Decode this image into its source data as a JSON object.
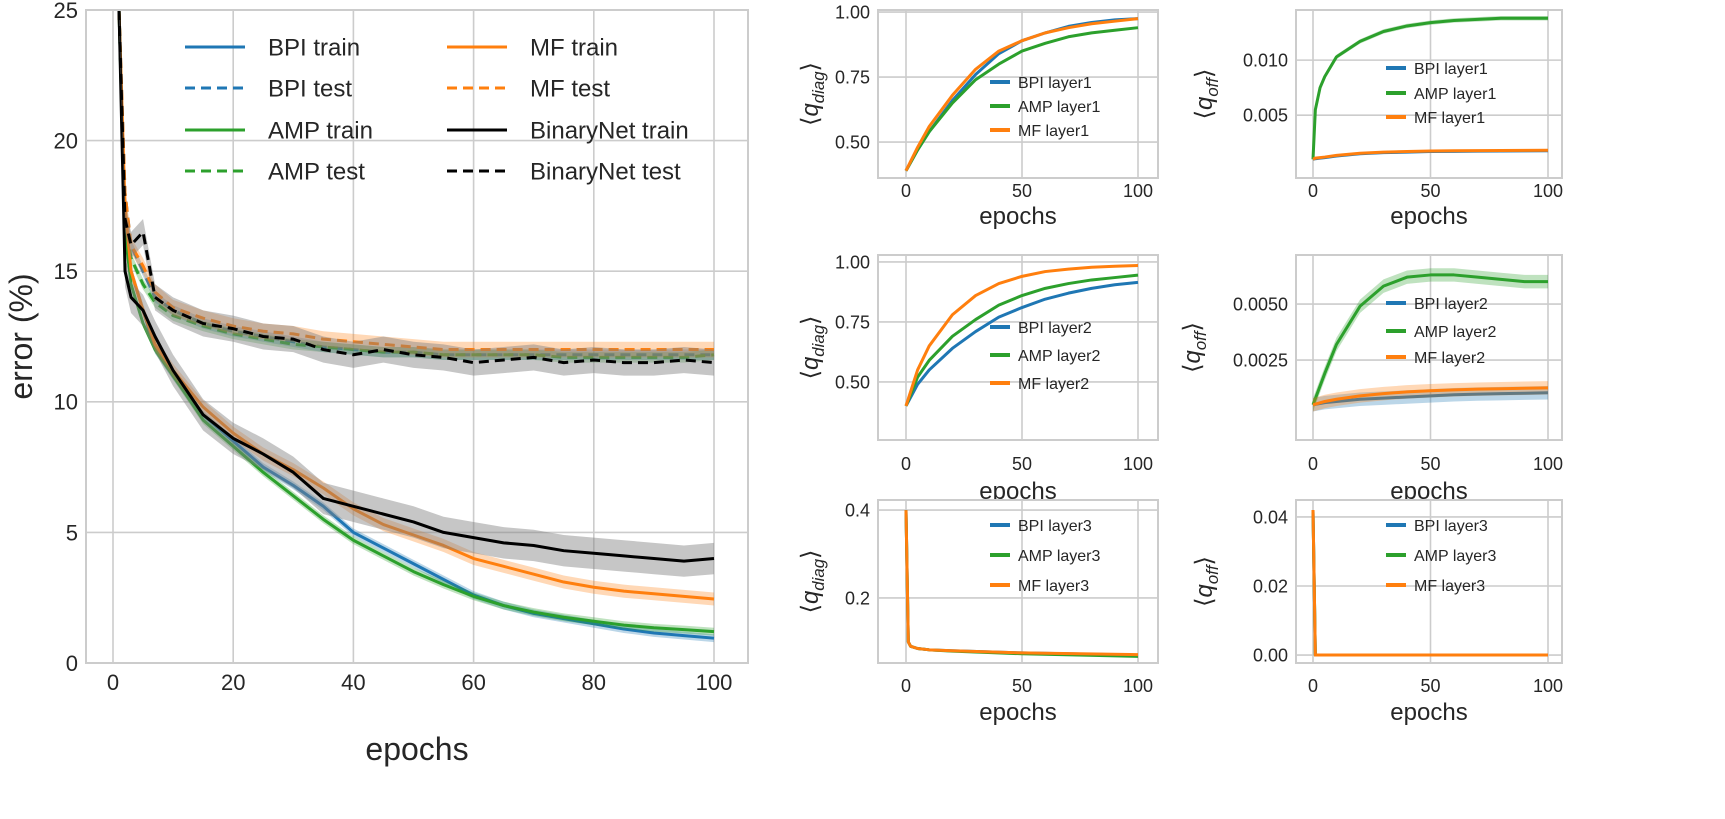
{
  "colors": {
    "BPI": "#1f77b4",
    "AMP": "#2ca02c",
    "MF": "#ff7f0e",
    "BinaryNet": "#000000",
    "grid": "#cccccc"
  },
  "chart_data": [
    {
      "type": "line",
      "xlabel": "epochs",
      "ylabel": "error (%)",
      "xlim": [
        -4,
        105
      ],
      "ylim": [
        0,
        25
      ],
      "xticks": [
        0,
        20,
        40,
        60,
        80,
        100
      ],
      "yticks": [
        0,
        5,
        10,
        15,
        20,
        25
      ],
      "grid": true,
      "legend": "top, two columns",
      "x": [
        1,
        2,
        3,
        5,
        7,
        10,
        15,
        20,
        25,
        30,
        35,
        40,
        45,
        50,
        55,
        60,
        65,
        70,
        75,
        80,
        85,
        90,
        95,
        100
      ],
      "series": [
        {
          "name": "BPI train",
          "color": "BPI",
          "dash": false,
          "band": 0.15,
          "values": [
            25,
            17,
            15,
            13.5,
            12,
            11,
            9.5,
            8.5,
            7.5,
            6.8,
            6,
            5,
            4.4,
            3.8,
            3.2,
            2.6,
            2.2,
            1.9,
            1.7,
            1.5,
            1.3,
            1.15,
            1.05,
            0.95
          ]
        },
        {
          "name": "BPI test",
          "color": "BPI",
          "dash": true,
          "band": 0.2,
          "values": [
            25,
            18,
            16,
            15,
            14,
            13.5,
            13,
            12.7,
            12.5,
            12.3,
            12.1,
            12,
            11.9,
            11.9,
            11.8,
            11.8,
            11.8,
            11.8,
            11.8,
            11.8,
            11.8,
            11.8,
            11.8,
            11.8
          ]
        },
        {
          "name": "AMP train",
          "color": "AMP",
          "dash": false,
          "band": 0.15,
          "values": [
            25,
            16.5,
            14.5,
            13,
            12,
            11,
            9.3,
            8.3,
            7.3,
            6.4,
            5.5,
            4.7,
            4.1,
            3.5,
            3.0,
            2.55,
            2.2,
            1.95,
            1.75,
            1.6,
            1.45,
            1.35,
            1.28,
            1.2
          ]
        },
        {
          "name": "AMP test",
          "color": "AMP",
          "dash": true,
          "band": 0.2,
          "values": [
            25,
            17,
            15.5,
            14.5,
            13.8,
            13.3,
            12.9,
            12.6,
            12.4,
            12.2,
            12.1,
            12.0,
            11.9,
            11.9,
            11.8,
            11.8,
            11.8,
            11.8,
            11.7,
            11.7,
            11.7,
            11.7,
            11.7,
            11.8
          ]
        },
        {
          "name": "MF train",
          "color": "MF",
          "dash": false,
          "band": 0.25,
          "values": [
            25,
            17.5,
            15,
            13.5,
            12.2,
            11.2,
            9.8,
            8.8,
            8,
            7.4,
            6.7,
            5.9,
            5.3,
            4.9,
            4.5,
            4.0,
            3.7,
            3.4,
            3.1,
            2.9,
            2.75,
            2.65,
            2.55,
            2.45
          ]
        },
        {
          "name": "MF test",
          "color": "MF",
          "dash": true,
          "band": 0.3,
          "values": [
            25,
            18,
            16,
            15.2,
            14.2,
            13.6,
            13.2,
            12.9,
            12.7,
            12.6,
            12.4,
            12.3,
            12.2,
            12.1,
            12.0,
            12.0,
            12.0,
            12.0,
            12.0,
            12.0,
            12.0,
            12.0,
            12.0,
            12.0
          ]
        },
        {
          "name": "BinaryNet train",
          "color": "BinaryNet",
          "dash": false,
          "band": 0.6,
          "values": [
            25,
            15,
            14,
            13.5,
            12.5,
            11.2,
            9.5,
            8.6,
            8.0,
            7.3,
            6.3,
            6.0,
            5.7,
            5.4,
            5.0,
            4.8,
            4.6,
            4.5,
            4.3,
            4.2,
            4.1,
            4.0,
            3.9,
            4.0
          ]
        },
        {
          "name": "BinaryNet test",
          "color": "BinaryNet",
          "dash": true,
          "band": 0.5,
          "values": [
            25,
            17,
            16,
            16.5,
            14,
            13.5,
            13,
            12.8,
            12.5,
            12.4,
            12,
            11.8,
            12,
            11.8,
            11.7,
            11.5,
            11.6,
            11.7,
            11.5,
            11.6,
            11.5,
            11.5,
            11.6,
            11.5
          ]
        }
      ]
    },
    {
      "type": "line",
      "xlabel": "epochs",
      "ylabel": [
        "⟨",
        "q",
        "diag",
        "⟩"
      ],
      "xlim": [
        -4,
        104
      ],
      "ylim": [
        0.362,
        1.008
      ],
      "xticks": [
        0,
        50,
        100
      ],
      "yticks": [
        0.5,
        0.75,
        1.0
      ],
      "ytick_labels": [
        "0.50",
        "0.75",
        "1.00"
      ],
      "grid": true,
      "legend": "center-right",
      "x": [
        0,
        5,
        10,
        20,
        30,
        40,
        50,
        60,
        70,
        80,
        90,
        100
      ],
      "series": [
        {
          "name": "BPI layer1",
          "color": "BPI",
          "band": 0.003,
          "values": [
            0.39,
            0.47,
            0.54,
            0.66,
            0.76,
            0.84,
            0.89,
            0.92,
            0.945,
            0.96,
            0.97,
            0.975
          ]
        },
        {
          "name": "AMP layer1",
          "color": "AMP",
          "band": 0.003,
          "values": [
            0.39,
            0.47,
            0.54,
            0.65,
            0.74,
            0.8,
            0.85,
            0.88,
            0.905,
            0.92,
            0.93,
            0.94
          ]
        },
        {
          "name": "MF layer1",
          "color": "MF",
          "band": 0.003,
          "values": [
            0.39,
            0.48,
            0.56,
            0.68,
            0.78,
            0.85,
            0.89,
            0.92,
            0.94,
            0.955,
            0.965,
            0.975
          ]
        }
      ]
    },
    {
      "type": "line",
      "xlabel": "epochs",
      "ylabel": [
        "⟨",
        "q",
        "off",
        "⟩"
      ],
      "xlim": [
        -4,
        104
      ],
      "ylim": [
        -0.0007,
        0.01455
      ],
      "xticks": [
        0,
        50,
        100
      ],
      "yticks": [
        0.005,
        0.01
      ],
      "ytick_labels": [
        "0.005",
        "0.010"
      ],
      "grid": true,
      "legend": "center-right",
      "x": [
        0,
        1,
        3,
        5,
        10,
        20,
        30,
        40,
        50,
        60,
        70,
        80,
        90,
        100
      ],
      "series": [
        {
          "name": "BPI layer1",
          "color": "BPI",
          "band": 5e-05,
          "values": [
            0.001,
            0.00105,
            0.0011,
            0.00115,
            0.0013,
            0.0015,
            0.0016,
            0.00165,
            0.0017,
            0.00172,
            0.00174,
            0.00175,
            0.00176,
            0.00177
          ]
        },
        {
          "name": "AMP layer1",
          "color": "AMP",
          "band": 0.0002,
          "values": [
            0.001,
            0.0055,
            0.0075,
            0.0085,
            0.0103,
            0.0117,
            0.0126,
            0.0131,
            0.0134,
            0.0136,
            0.0137,
            0.0138,
            0.0138,
            0.0138
          ]
        },
        {
          "name": "MF layer1",
          "color": "MF",
          "band": 5e-05,
          "values": [
            0.001,
            0.0011,
            0.00115,
            0.0012,
            0.00135,
            0.00155,
            0.00165,
            0.0017,
            0.00175,
            0.00177,
            0.00179,
            0.0018,
            0.00181,
            0.00182
          ]
        }
      ]
    },
    {
      "type": "line",
      "xlabel": "epochs",
      "ylabel": [
        "⟨",
        "q",
        "diag",
        "⟩"
      ],
      "xlim": [
        -4,
        104
      ],
      "ylim": [
        0.258,
        1.029
      ],
      "xticks": [
        0,
        50,
        100
      ],
      "yticks": [
        0.5,
        0.75,
        1.0
      ],
      "ytick_labels": [
        "0.50",
        "0.75",
        "1.00"
      ],
      "grid": true,
      "legend": "center-right",
      "x": [
        0,
        5,
        10,
        20,
        30,
        40,
        50,
        60,
        70,
        80,
        90,
        100
      ],
      "series": [
        {
          "name": "BPI layer2",
          "color": "BPI",
          "band": 0.003,
          "values": [
            0.4,
            0.49,
            0.55,
            0.64,
            0.71,
            0.77,
            0.81,
            0.845,
            0.87,
            0.89,
            0.905,
            0.915
          ]
        },
        {
          "name": "AMP layer2",
          "color": "AMP",
          "band": 0.003,
          "values": [
            0.4,
            0.52,
            0.59,
            0.69,
            0.76,
            0.82,
            0.86,
            0.89,
            0.91,
            0.925,
            0.935,
            0.945
          ]
        },
        {
          "name": "MF layer2",
          "color": "MF",
          "band": 0.003,
          "values": [
            0.4,
            0.55,
            0.65,
            0.78,
            0.86,
            0.91,
            0.94,
            0.96,
            0.97,
            0.978,
            0.982,
            0.985
          ]
        }
      ]
    },
    {
      "type": "line",
      "xlabel": "epochs",
      "ylabel": [
        "⟨",
        "q",
        "off",
        "⟩"
      ],
      "xlim": [
        -4,
        104
      ],
      "ylim": [
        -0.00107,
        0.00719
      ],
      "xticks": [
        0,
        50,
        100
      ],
      "yticks": [
        0.0025,
        0.005
      ],
      "ytick_labels": [
        "0.0025",
        "0.0050"
      ],
      "grid": true,
      "legend": "center-right",
      "x": [
        0,
        5,
        10,
        20,
        30,
        40,
        50,
        60,
        70,
        80,
        90,
        100
      ],
      "series": [
        {
          "name": "BPI layer2",
          "color": "BPI",
          "band": 0.0003,
          "values": [
            0.0005,
            0.0006,
            0.00065,
            0.00075,
            0.0008,
            0.00085,
            0.0009,
            0.00095,
            0.00098,
            0.001,
            0.00102,
            0.00104
          ]
        },
        {
          "name": "AMP layer2",
          "color": "AMP",
          "band": 0.0003,
          "values": [
            0.0005,
            0.0019,
            0.0032,
            0.0049,
            0.0058,
            0.0062,
            0.0063,
            0.0063,
            0.0062,
            0.0061,
            0.006,
            0.006
          ]
        },
        {
          "name": "MF layer2",
          "color": "MF",
          "band": 0.0003,
          "values": [
            0.0005,
            0.00065,
            0.00075,
            0.0009,
            0.001,
            0.00108,
            0.00113,
            0.00117,
            0.0012,
            0.00122,
            0.00124,
            0.00126
          ]
        }
      ]
    },
    {
      "type": "line",
      "xlabel": "epochs",
      "ylabel": [
        "⟨",
        "q",
        "diag",
        "⟩"
      ],
      "xlim": [
        -4,
        104
      ],
      "ylim": [
        0.052,
        0.423
      ],
      "xticks": [
        0,
        50,
        100
      ],
      "yticks": [
        0.2,
        0.4
      ],
      "ytick_labels": [
        "0.2",
        "0.4"
      ],
      "grid": true,
      "legend": "top-right",
      "x": [
        0,
        1,
        2,
        5,
        10,
        20,
        50,
        100
      ],
      "series": [
        {
          "name": "BPI layer3",
          "color": "BPI",
          "band": 0,
          "values": [
            0.4,
            0.1,
            0.09,
            0.085,
            0.082,
            0.08,
            0.075,
            0.07
          ]
        },
        {
          "name": "AMP layer3",
          "color": "AMP",
          "band": 0,
          "values": [
            0.4,
            0.1,
            0.09,
            0.085,
            0.082,
            0.079,
            0.073,
            0.067
          ]
        },
        {
          "name": "MF layer3",
          "color": "MF",
          "band": 0,
          "values": [
            0.4,
            0.1,
            0.09,
            0.085,
            0.082,
            0.08,
            0.075,
            0.071
          ]
        }
      ]
    },
    {
      "type": "line",
      "xlabel": "epochs",
      "ylabel": [
        "⟨",
        "q",
        "off",
        "⟩"
      ],
      "xlim": [
        -4,
        104
      ],
      "ylim": [
        -0.0023,
        0.0449
      ],
      "xticks": [
        0,
        50,
        100
      ],
      "yticks": [
        0,
        0.02,
        0.04
      ],
      "ytick_labels": [
        "0.00",
        "0.02",
        "0.04"
      ],
      "grid": true,
      "legend": "top-right",
      "x": [
        0,
        1,
        2,
        50,
        100
      ],
      "series": [
        {
          "name": "BPI layer3",
          "color": "BPI",
          "band": 0,
          "values": [
            0.042,
            0,
            0,
            0,
            0
          ]
        },
        {
          "name": "AMP layer3",
          "color": "AMP",
          "band": 0,
          "values": [
            0.042,
            0,
            0,
            0,
            0
          ]
        },
        {
          "name": "MF layer3",
          "color": "MF",
          "band": 0,
          "values": [
            0.042,
            0,
            0,
            0,
            0
          ]
        }
      ]
    }
  ]
}
